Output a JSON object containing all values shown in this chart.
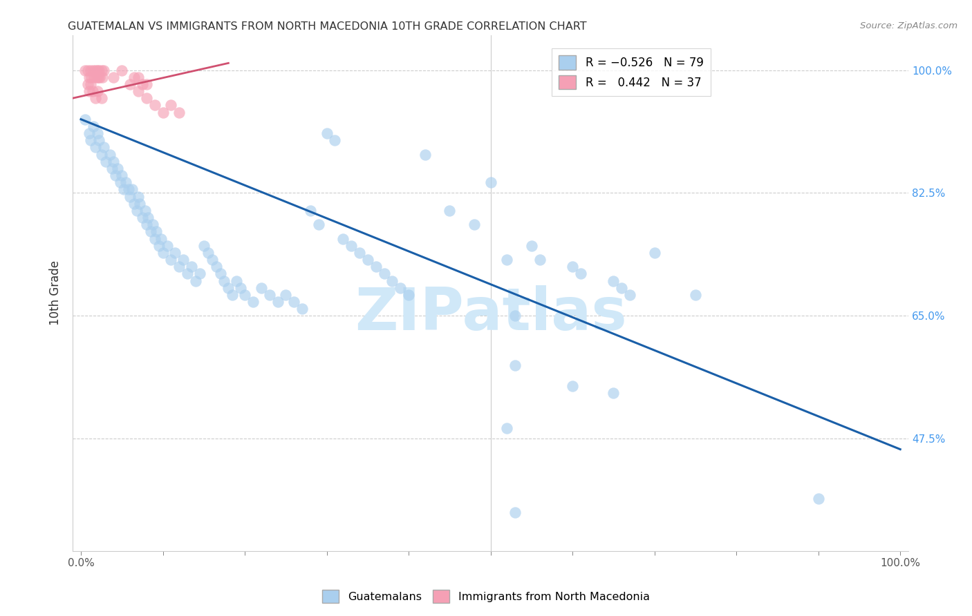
{
  "title": "GUATEMALAN VS IMMIGRANTS FROM NORTH MACEDONIA 10TH GRADE CORRELATION CHART",
  "source": "Source: ZipAtlas.com",
  "ylabel": "10th Grade",
  "ytick_labels": [
    "100.0%",
    "82.5%",
    "65.0%",
    "47.5%"
  ],
  "ytick_values": [
    1.0,
    0.825,
    0.65,
    0.475
  ],
  "watermark": "ZIPatlas",
  "blue_scatter": [
    [
      0.005,
      0.93
    ],
    [
      0.01,
      0.91
    ],
    [
      0.012,
      0.9
    ],
    [
      0.015,
      0.92
    ],
    [
      0.018,
      0.89
    ],
    [
      0.02,
      0.91
    ],
    [
      0.022,
      0.9
    ],
    [
      0.025,
      0.88
    ],
    [
      0.028,
      0.89
    ],
    [
      0.03,
      0.87
    ],
    [
      0.035,
      0.88
    ],
    [
      0.038,
      0.86
    ],
    [
      0.04,
      0.87
    ],
    [
      0.042,
      0.85
    ],
    [
      0.045,
      0.86
    ],
    [
      0.048,
      0.84
    ],
    [
      0.05,
      0.85
    ],
    [
      0.052,
      0.83
    ],
    [
      0.055,
      0.84
    ],
    [
      0.058,
      0.83
    ],
    [
      0.06,
      0.82
    ],
    [
      0.062,
      0.83
    ],
    [
      0.065,
      0.81
    ],
    [
      0.068,
      0.8
    ],
    [
      0.07,
      0.82
    ],
    [
      0.072,
      0.81
    ],
    [
      0.075,
      0.79
    ],
    [
      0.078,
      0.8
    ],
    [
      0.08,
      0.78
    ],
    [
      0.082,
      0.79
    ],
    [
      0.085,
      0.77
    ],
    [
      0.088,
      0.78
    ],
    [
      0.09,
      0.76
    ],
    [
      0.092,
      0.77
    ],
    [
      0.095,
      0.75
    ],
    [
      0.098,
      0.76
    ],
    [
      0.1,
      0.74
    ],
    [
      0.105,
      0.75
    ],
    [
      0.11,
      0.73
    ],
    [
      0.115,
      0.74
    ],
    [
      0.12,
      0.72
    ],
    [
      0.125,
      0.73
    ],
    [
      0.13,
      0.71
    ],
    [
      0.135,
      0.72
    ],
    [
      0.14,
      0.7
    ],
    [
      0.145,
      0.71
    ],
    [
      0.15,
      0.75
    ],
    [
      0.155,
      0.74
    ],
    [
      0.16,
      0.73
    ],
    [
      0.165,
      0.72
    ],
    [
      0.17,
      0.71
    ],
    [
      0.175,
      0.7
    ],
    [
      0.18,
      0.69
    ],
    [
      0.185,
      0.68
    ],
    [
      0.19,
      0.7
    ],
    [
      0.195,
      0.69
    ],
    [
      0.2,
      0.68
    ],
    [
      0.21,
      0.67
    ],
    [
      0.22,
      0.69
    ],
    [
      0.23,
      0.68
    ],
    [
      0.24,
      0.67
    ],
    [
      0.25,
      0.68
    ],
    [
      0.26,
      0.67
    ],
    [
      0.27,
      0.66
    ],
    [
      0.28,
      0.8
    ],
    [
      0.29,
      0.78
    ],
    [
      0.3,
      0.91
    ],
    [
      0.31,
      0.9
    ],
    [
      0.32,
      0.76
    ],
    [
      0.33,
      0.75
    ],
    [
      0.34,
      0.74
    ],
    [
      0.35,
      0.73
    ],
    [
      0.36,
      0.72
    ],
    [
      0.37,
      0.71
    ],
    [
      0.38,
      0.7
    ],
    [
      0.39,
      0.69
    ],
    [
      0.4,
      0.68
    ],
    [
      0.42,
      0.88
    ],
    [
      0.45,
      0.8
    ],
    [
      0.48,
      0.78
    ],
    [
      0.5,
      0.84
    ],
    [
      0.52,
      0.73
    ],
    [
      0.53,
      0.65
    ],
    [
      0.55,
      0.75
    ],
    [
      0.56,
      0.73
    ],
    [
      0.6,
      0.72
    ],
    [
      0.61,
      0.71
    ],
    [
      0.65,
      0.7
    ],
    [
      0.66,
      0.69
    ],
    [
      0.67,
      0.68
    ],
    [
      0.7,
      0.74
    ],
    [
      0.75,
      0.68
    ],
    [
      0.53,
      0.58
    ],
    [
      0.6,
      0.55
    ],
    [
      0.65,
      0.54
    ],
    [
      0.52,
      0.49
    ],
    [
      0.9,
      0.39
    ],
    [
      0.53,
      0.37
    ]
  ],
  "pink_scatter": [
    [
      0.005,
      1.0
    ],
    [
      0.008,
      1.0
    ],
    [
      0.01,
      0.99
    ],
    [
      0.012,
      1.0
    ],
    [
      0.013,
      0.99
    ],
    [
      0.015,
      1.0
    ],
    [
      0.016,
      0.99
    ],
    [
      0.018,
      1.0
    ],
    [
      0.019,
      0.99
    ],
    [
      0.02,
      1.0
    ],
    [
      0.021,
      0.99
    ],
    [
      0.022,
      1.0
    ],
    [
      0.023,
      0.99
    ],
    [
      0.025,
      1.0
    ],
    [
      0.026,
      0.99
    ],
    [
      0.028,
      1.0
    ],
    [
      0.008,
      0.98
    ],
    [
      0.01,
      0.97
    ],
    [
      0.012,
      0.98
    ],
    [
      0.014,
      0.97
    ],
    [
      0.018,
      0.96
    ],
    [
      0.02,
      0.97
    ],
    [
      0.025,
      0.96
    ],
    [
      0.04,
      0.99
    ],
    [
      0.05,
      1.0
    ],
    [
      0.06,
      0.98
    ],
    [
      0.065,
      0.99
    ],
    [
      0.07,
      0.97
    ],
    [
      0.075,
      0.98
    ],
    [
      0.08,
      0.96
    ],
    [
      0.09,
      0.95
    ],
    [
      0.1,
      0.94
    ],
    [
      0.11,
      0.95
    ],
    [
      0.12,
      0.94
    ],
    [
      0.07,
      0.99
    ],
    [
      0.08,
      0.98
    ]
  ],
  "blue_line_x": [
    0.0,
    1.0
  ],
  "blue_line_y": [
    0.93,
    0.46
  ],
  "pink_line_x": [
    -0.01,
    0.18
  ],
  "pink_line_y": [
    0.96,
    1.01
  ],
  "xlim": [
    -0.01,
    1.01
  ],
  "ylim": [
    0.315,
    1.05
  ],
  "background_color": "#ffffff",
  "scatter_blue_color": "#aacfee",
  "scatter_pink_color": "#f5a0b5",
  "line_blue_color": "#1a5fa8",
  "line_pink_color": "#d05070",
  "grid_color": "#cccccc",
  "title_color": "#333333",
  "axis_label_color": "#555555",
  "ytick_color": "#4499ee",
  "watermark_color": "#d0e8f8"
}
